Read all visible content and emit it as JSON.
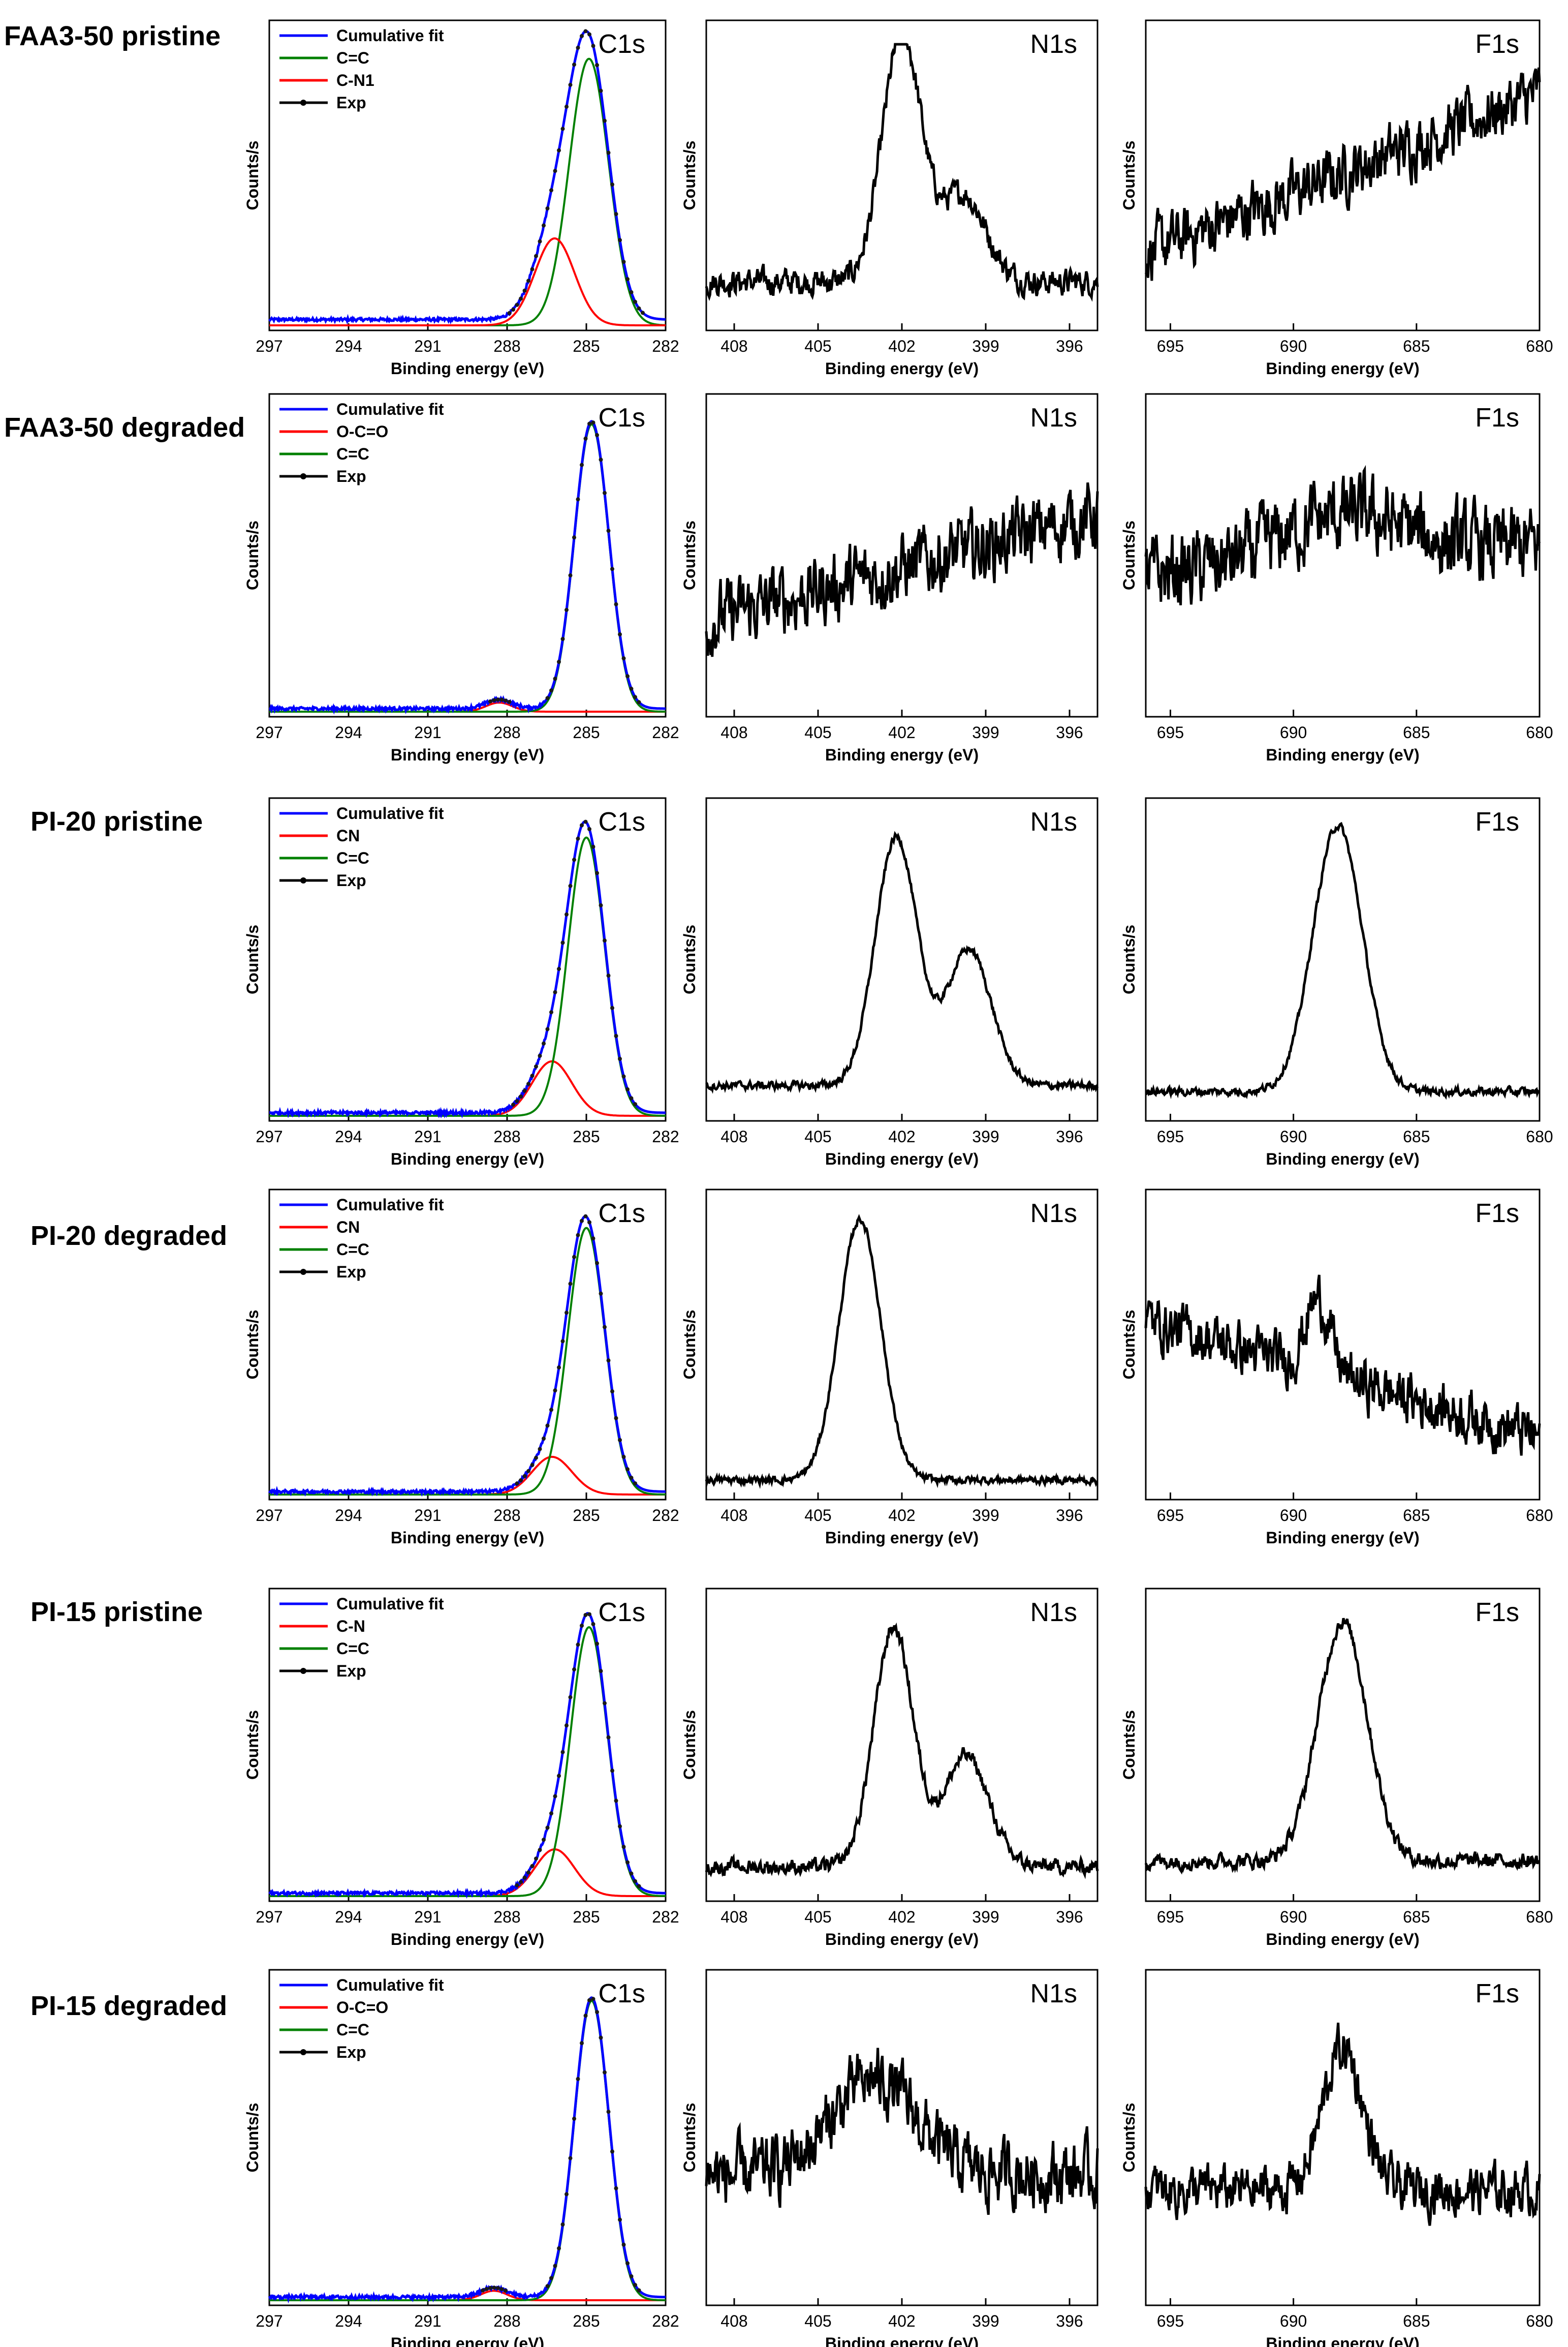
{
  "axis_text": {
    "xlabel": "Binding energy (eV)",
    "ylabel": "Counts/s"
  },
  "colors": {
    "cumulative_fit": "#0000ff",
    "red_component": "#ff0000",
    "green_component": "#008000",
    "exp": "#000000"
  },
  "rows": [
    {
      "label": "FAA3-50 pristine"
    },
    {
      "label": "FAA3-50 degraded"
    },
    {
      "label": "PI-20 pristine"
    },
    {
      "label": "PI-20 degraded"
    },
    {
      "label": "PI-15 pristine"
    },
    {
      "label": "PI-15 degraded"
    }
  ],
  "chart_data": [
    {
      "row": 0,
      "col": 0,
      "type": "line",
      "region": "C1s",
      "xlim": [
        297,
        282
      ],
      "xticks": [
        297,
        294,
        291,
        288,
        285,
        282
      ],
      "xlabel": "Binding energy (eV)",
      "ylabel": "Counts/s",
      "baseline": 0.02,
      "legend": [
        "Cumulative fit",
        "C=C",
        "C-N1",
        "Exp"
      ],
      "series": [
        {
          "name": "C=C",
          "center": 284.9,
          "width": 0.75,
          "amp": 0.92,
          "color": "#008000"
        },
        {
          "name": "C-N1",
          "center": 286.2,
          "width": 0.75,
          "amp": 0.3,
          "color": "#ff0000"
        }
      ]
    },
    {
      "row": 0,
      "col": 1,
      "type": "line",
      "region": "N1s",
      "xlim": [
        409,
        395
      ],
      "xticks": [
        408,
        405,
        402,
        399,
        396
      ],
      "xlabel": "Binding energy (eV)",
      "ylabel": "Counts/s",
      "noise": 0.07,
      "peaks": [
        {
          "center": 402.0,
          "width": 0.7,
          "amp": 0.85
        },
        {
          "center": 399.8,
          "width": 0.8,
          "amp": 0.3
        }
      ],
      "base": 0.15,
      "slope": 0.0
    },
    {
      "row": 0,
      "col": 2,
      "type": "line",
      "region": "F1s",
      "xlim": [
        696,
        680
      ],
      "xticks": [
        695,
        690,
        685,
        680
      ],
      "xlabel": "Binding energy (eV)",
      "ylabel": "Counts/s",
      "noise": 0.16,
      "peaks": [],
      "base": 0.25,
      "slope": 0.55
    },
    {
      "row": 1,
      "col": 0,
      "type": "line",
      "region": "C1s",
      "xlim": [
        297,
        282
      ],
      "xticks": [
        297,
        294,
        291,
        288,
        285,
        282
      ],
      "xlabel": "Binding energy (eV)",
      "ylabel": "Counts/s",
      "baseline": 0.01,
      "legend": [
        "Cumulative fit",
        "O-C=O",
        "C=C",
        "Exp"
      ],
      "series": [
        {
          "name": "O-C=O",
          "center": 288.3,
          "width": 0.5,
          "amp": 0.03,
          "color": "#ff0000"
        },
        {
          "name": "C=C",
          "center": 284.8,
          "width": 0.65,
          "amp": 0.95,
          "color": "#008000"
        }
      ]
    },
    {
      "row": 1,
      "col": 1,
      "type": "line",
      "region": "N1s",
      "xlim": [
        409,
        395
      ],
      "xticks": [
        408,
        405,
        402,
        399,
        396
      ],
      "xlabel": "Binding energy (eV)",
      "ylabel": "Counts/s",
      "noise": 0.18,
      "peaks": [],
      "base": 0.3,
      "slope": 0.35
    },
    {
      "row": 1,
      "col": 2,
      "type": "line",
      "region": "F1s",
      "xlim": [
        696,
        680
      ],
      "xticks": [
        695,
        690,
        685,
        680
      ],
      "xlabel": "Binding energy (eV)",
      "ylabel": "Counts/s",
      "noise": 0.2,
      "peaks": [
        {
          "center": 688,
          "width": 2.5,
          "amp": 0.15
        }
      ],
      "base": 0.45,
      "slope": 0.1
    },
    {
      "row": 2,
      "col": 0,
      "type": "line",
      "region": "C1s",
      "xlim": [
        297,
        282
      ],
      "xticks": [
        297,
        294,
        291,
        288,
        285,
        282
      ],
      "xlabel": "Binding energy (eV)",
      "ylabel": "Counts/s",
      "baseline": 0.01,
      "legend": [
        "Cumulative fit",
        "CN",
        "C=C",
        "Exp"
      ],
      "series": [
        {
          "name": "CN",
          "center": 286.3,
          "width": 0.75,
          "amp": 0.18,
          "color": "#ff0000"
        },
        {
          "name": "C=C",
          "center": 285.0,
          "width": 0.7,
          "amp": 0.92,
          "color": "#008000"
        }
      ]
    },
    {
      "row": 2,
      "col": 1,
      "type": "line",
      "region": "N1s",
      "xlim": [
        409,
        395
      ],
      "xticks": [
        408,
        405,
        402,
        399,
        396
      ],
      "xlabel": "Binding energy (eV)",
      "ylabel": "Counts/s",
      "noise": 0.02,
      "peaks": [
        {
          "center": 402.2,
          "width": 0.75,
          "amp": 0.82
        },
        {
          "center": 399.6,
          "width": 0.8,
          "amp": 0.45
        }
      ],
      "base": 0.1,
      "slope": 0.0
    },
    {
      "row": 2,
      "col": 2,
      "type": "line",
      "region": "F1s",
      "xlim": [
        696,
        680
      ],
      "xticks": [
        695,
        690,
        685,
        680
      ],
      "xlabel": "Binding energy (eV)",
      "ylabel": "Counts/s",
      "noise": 0.02,
      "peaks": [
        {
          "center": 688.2,
          "width": 1.0,
          "amp": 0.88
        }
      ],
      "base": 0.08,
      "slope": 0.0
    },
    {
      "row": 3,
      "col": 0,
      "type": "line",
      "region": "C1s",
      "xlim": [
        297,
        282
      ],
      "xticks": [
        297,
        294,
        291,
        288,
        285,
        282
      ],
      "xlabel": "Binding energy (eV)",
      "ylabel": "Counts/s",
      "baseline": 0.01,
      "legend": [
        "Cumulative fit",
        "CN",
        "C=C",
        "Exp"
      ],
      "series": [
        {
          "name": "CN",
          "center": 286.3,
          "width": 0.75,
          "amp": 0.13,
          "color": "#ff0000"
        },
        {
          "name": "C=C",
          "center": 285.0,
          "width": 0.7,
          "amp": 0.92,
          "color": "#008000"
        }
      ]
    },
    {
      "row": 3,
      "col": 1,
      "type": "line",
      "region": "N1s",
      "xlim": [
        409,
        395
      ],
      "xticks": [
        408,
        405,
        402,
        399,
        396
      ],
      "xlabel": "Binding energy (eV)",
      "ylabel": "Counts/s",
      "noise": 0.02,
      "peaks": [
        {
          "center": 403.5,
          "width": 0.75,
          "amp": 0.9
        }
      ],
      "base": 0.05,
      "slope": 0.0
    },
    {
      "row": 3,
      "col": 2,
      "type": "line",
      "region": "F1s",
      "xlim": [
        696,
        680
      ],
      "xticks": [
        695,
        690,
        685,
        680
      ],
      "xlabel": "Binding energy (eV)",
      "ylabel": "Counts/s",
      "noise": 0.14,
      "peaks": [
        {
          "center": 689.0,
          "width": 0.5,
          "amp": 0.25
        }
      ],
      "base": 0.6,
      "slope": -0.4
    },
    {
      "row": 4,
      "col": 0,
      "type": "line",
      "region": "C1s",
      "xlim": [
        297,
        282
      ],
      "xticks": [
        297,
        294,
        291,
        288,
        285,
        282
      ],
      "xlabel": "Binding energy (eV)",
      "ylabel": "Counts/s",
      "baseline": 0.01,
      "legend": [
        "Cumulative fit",
        "C-N",
        "C=C",
        "Exp"
      ],
      "series": [
        {
          "name": "C-N",
          "center": 286.2,
          "width": 0.75,
          "amp": 0.16,
          "color": "#ff0000"
        },
        {
          "name": "C=C",
          "center": 284.9,
          "width": 0.7,
          "amp": 0.92,
          "color": "#008000"
        }
      ]
    },
    {
      "row": 4,
      "col": 1,
      "type": "line",
      "region": "N1s",
      "xlim": [
        409,
        395
      ],
      "xticks": [
        408,
        405,
        402,
        399,
        396
      ],
      "xlabel": "Binding energy (eV)",
      "ylabel": "Counts/s",
      "noise": 0.04,
      "peaks": [
        {
          "center": 402.3,
          "width": 0.7,
          "amp": 0.82
        },
        {
          "center": 399.7,
          "width": 0.8,
          "amp": 0.38
        }
      ],
      "base": 0.1,
      "slope": 0.0
    },
    {
      "row": 4,
      "col": 2,
      "type": "line",
      "region": "F1s",
      "xlim": [
        696,
        680
      ],
      "xticks": [
        695,
        690,
        685,
        680
      ],
      "xlabel": "Binding energy (eV)",
      "ylabel": "Counts/s",
      "noise": 0.04,
      "peaks": [
        {
          "center": 688.0,
          "width": 1.0,
          "amp": 0.82
        }
      ],
      "base": 0.12,
      "slope": 0.0
    },
    {
      "row": 5,
      "col": 0,
      "type": "line",
      "region": "C1s",
      "xlim": [
        297,
        282
      ],
      "xticks": [
        297,
        294,
        291,
        288,
        285,
        282
      ],
      "xlabel": "Binding energy (eV)",
      "ylabel": "Counts/s",
      "baseline": 0.01,
      "legend": [
        "Cumulative fit",
        "O-C=O",
        "C=C",
        "Exp"
      ],
      "series": [
        {
          "name": "O-C=O",
          "center": 288.5,
          "width": 0.5,
          "amp": 0.03,
          "color": "#ff0000"
        },
        {
          "name": "C=C",
          "center": 284.8,
          "width": 0.65,
          "amp": 0.95,
          "color": "#008000"
        }
      ]
    },
    {
      "row": 5,
      "col": 1,
      "type": "line",
      "region": "N1s",
      "xlim": [
        409,
        395
      ],
      "xticks": [
        408,
        405,
        402,
        399,
        396
      ],
      "xlabel": "Binding energy (eV)",
      "ylabel": "Counts/s",
      "noise": 0.16,
      "peaks": [
        {
          "center": 403.0,
          "width": 1.5,
          "amp": 0.3
        }
      ],
      "base": 0.4,
      "slope": 0.0
    },
    {
      "row": 5,
      "col": 2,
      "type": "line",
      "region": "F1s",
      "xlim": [
        696,
        680
      ],
      "xticks": [
        695,
        690,
        685,
        680
      ],
      "xlabel": "Binding energy (eV)",
      "ylabel": "Counts/s",
      "noise": 0.12,
      "peaks": [
        {
          "center": 688.0,
          "width": 0.8,
          "amp": 0.45
        }
      ],
      "base": 0.35,
      "slope": 0.0
    }
  ]
}
